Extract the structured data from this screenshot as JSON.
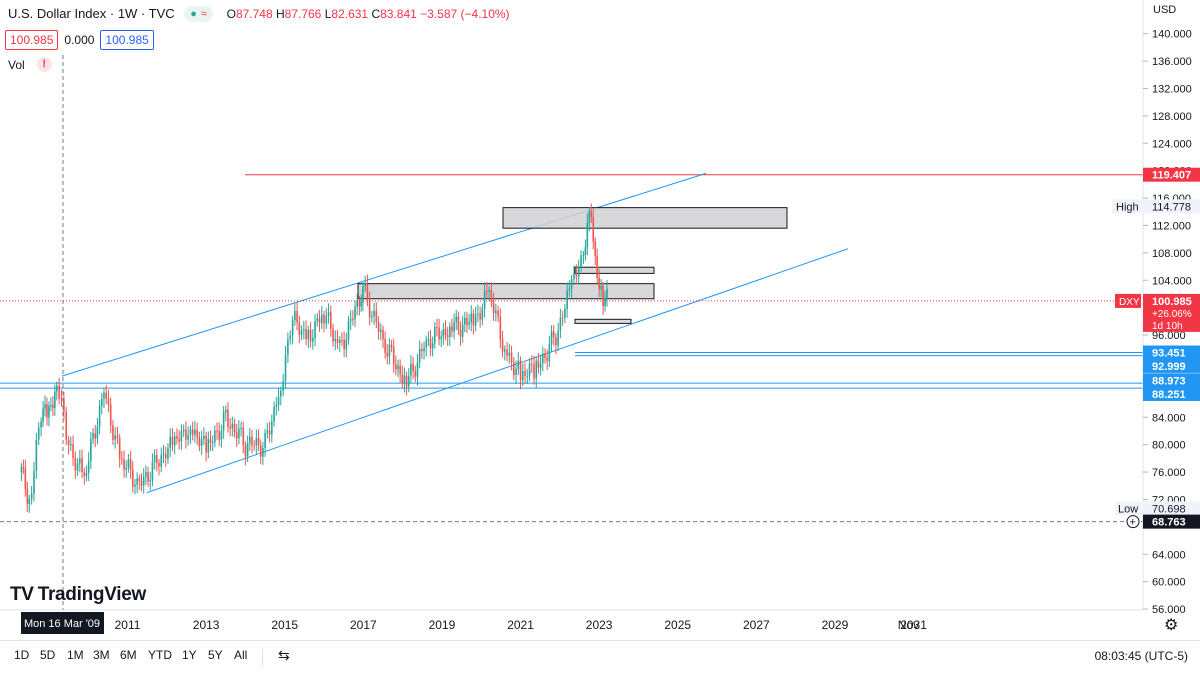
{
  "legend": {
    "title": "U.S. Dollar Index · 1W · TVC",
    "open_label": "O",
    "open": "87.748",
    "high_label": "H",
    "high": "87.766",
    "low_label": "L",
    "low": "82.631",
    "close_label": "C",
    "close": "83.841",
    "change": "−3.587 (−4.10%)",
    "status_icons": [
      "dot-icon",
      "wave-icon"
    ]
  },
  "price_boxes": {
    "bid": "100.985",
    "spread": "0.000",
    "ask": "100.985"
  },
  "volume": {
    "label": "Vol",
    "warning": "!"
  },
  "currency": "USD",
  "logo": {
    "mark": "TV",
    "text": "TradingView"
  },
  "chart_data": {
    "type": "candlestick",
    "symbol": "DXY",
    "ylim": [
      56,
      141
    ],
    "y_ticks": [
      "140.000",
      "136.000",
      "132.000",
      "128.000",
      "124.000",
      "120.000",
      "116.000",
      "112.000",
      "108.000",
      "104.000",
      "100.000",
      "96.000",
      "88.000",
      "84.000",
      "80.000",
      "76.000",
      "72.000",
      "64.000",
      "60.000",
      "56.000"
    ],
    "x_ticks": [
      "2011",
      "2013",
      "2015",
      "2017",
      "2019",
      "2021",
      "2023",
      "2025",
      "2027",
      "2029",
      "2031",
      "Nov"
    ],
    "crosshair_date": "Mon 16 Mar '09",
    "approx_closes": [
      [
        2008.3,
        76
      ],
      [
        2008.5,
        72
      ],
      [
        2008.8,
        84
      ],
      [
        2009.0,
        85
      ],
      [
        2009.2,
        89
      ],
      [
        2009.5,
        80
      ],
      [
        2009.9,
        75
      ],
      [
        2010.4,
        88
      ],
      [
        2010.8,
        78
      ],
      [
        2011.3,
        74
      ],
      [
        2011.8,
        78
      ],
      [
        2012.2,
        80
      ],
      [
        2012.6,
        83
      ],
      [
        2013.0,
        79
      ],
      [
        2013.5,
        84
      ],
      [
        2014.0,
        80
      ],
      [
        2014.5,
        80
      ],
      [
        2014.9,
        89
      ],
      [
        2015.2,
        98
      ],
      [
        2015.6,
        96
      ],
      [
        2016.0,
        99
      ],
      [
        2016.4,
        94
      ],
      [
        2016.9,
        101
      ],
      [
        2016.99,
        103
      ],
      [
        2017.5,
        95
      ],
      [
        2018.1,
        89
      ],
      [
        2018.6,
        95
      ],
      [
        2019.2,
        97
      ],
      [
        2019.8,
        98
      ],
      [
        2020.2,
        102
      ],
      [
        2020.6,
        94
      ],
      [
        2021.0,
        90
      ],
      [
        2021.4,
        91
      ],
      [
        2021.9,
        96
      ],
      [
        2022.3,
        103
      ],
      [
        2022.6,
        108
      ],
      [
        2022.75,
        114.8
      ],
      [
        2022.9,
        106
      ],
      [
        2023.1,
        102
      ],
      [
        2023.25,
        101
      ]
    ],
    "labels": {
      "resistance": "119.407",
      "high_tag": "High",
      "high_value": "114.778",
      "symbol_tag": "DXY",
      "last_price": "100.985",
      "change_pct": "+26.06%",
      "countdown": "1d 10h",
      "level_1": "93.451",
      "level_2": "92.999",
      "level_3": "88.973",
      "level_4": "88.251",
      "low_tag": "Low",
      "low_value": "70.698",
      "crosshair_price": "68.763"
    }
  },
  "ranges": [
    "1D",
    "5D",
    "1M",
    "3M",
    "6M",
    "YTD",
    "1Y",
    "5Y",
    "All"
  ],
  "clock": "08:03:45 (UTC-5)"
}
